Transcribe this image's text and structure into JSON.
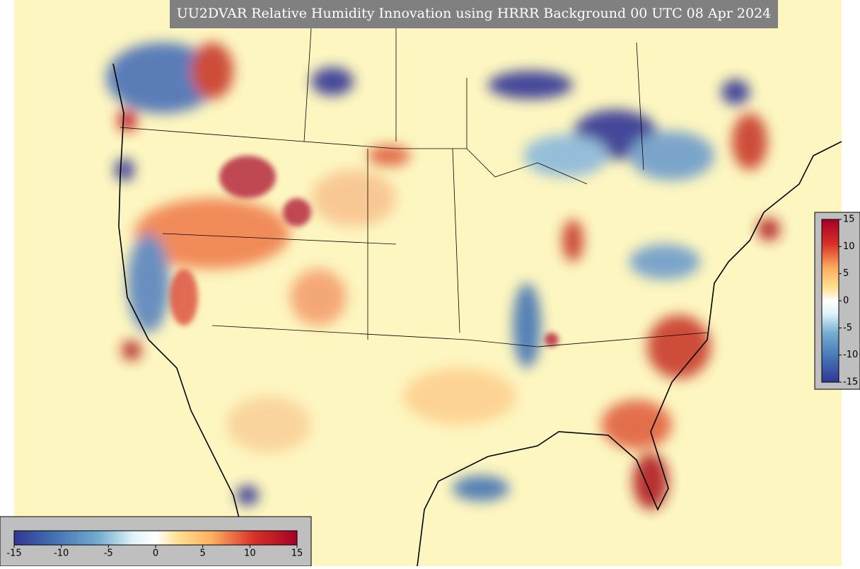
{
  "title": "UU2DVAR Relative Humidity Innovation using HRRR Background 00 UTC 08 Apr 2024",
  "colorbar_right": {
    "range": [
      -15,
      15
    ],
    "ticks": [
      15,
      10,
      5,
      0,
      -5,
      -10,
      -15
    ]
  },
  "colorbar_bottom": {
    "range": [
      -15,
      15
    ],
    "ticks": [
      -15,
      -10,
      -5,
      0,
      5,
      10,
      15
    ]
  }
}
